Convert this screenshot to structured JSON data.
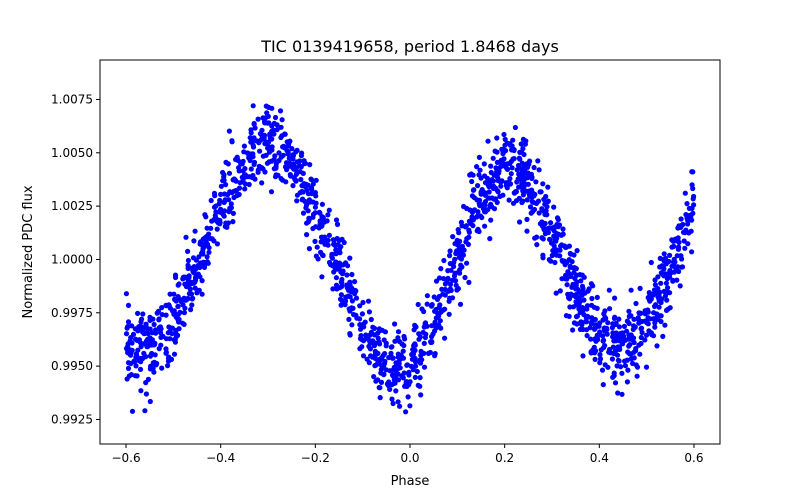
{
  "chart_data": {
    "type": "scatter",
    "title": "TIC 0139419658, period 1.8468 days",
    "xlabel": "Phase",
    "ylabel": "Normalized PDC flux",
    "xlim": [
      -0.655,
      0.655
    ],
    "ylim": [
      0.99135,
      1.00935
    ],
    "x_ticks": [
      -0.6,
      -0.4,
      -0.2,
      0.0,
      0.2,
      0.4,
      0.6
    ],
    "x_tick_labels": [
      "−0.6",
      "−0.4",
      "−0.2",
      "0.0",
      "0.2",
      "0.4",
      "0.6"
    ],
    "y_ticks": [
      0.9925,
      0.995,
      0.9975,
      1.0,
      1.0025,
      1.005,
      1.0075
    ],
    "y_tick_labels": [
      "0.9925",
      "0.9950",
      "0.9975",
      "1.0000",
      "1.0025",
      "1.0050",
      "1.0075"
    ],
    "grid": false,
    "marker_color": "#0000ff",
    "series": [
      {
        "name": "flux",
        "description_of_values": "binned mean flux vs phase; points scatter around it",
        "x": [
          -0.6,
          -0.55,
          -0.5,
          -0.45,
          -0.4,
          -0.35,
          -0.3,
          -0.25,
          -0.2,
          -0.15,
          -0.1,
          -0.05,
          0.0,
          0.05,
          0.1,
          0.15,
          0.2,
          0.25,
          0.3,
          0.35,
          0.4,
          0.45,
          0.5,
          0.55,
          0.6
        ],
        "y": [
          0.996,
          0.9958,
          0.997,
          0.9995,
          1.0025,
          1.0045,
          1.0055,
          1.0045,
          1.002,
          0.9995,
          0.9965,
          0.995,
          0.995,
          0.997,
          1.0,
          1.003,
          1.0045,
          1.0038,
          1.001,
          0.9985,
          0.9962,
          0.996,
          0.9968,
          0.9995,
          1.0025
        ],
        "scatter_sigma": 0.0011,
        "n_points": 1800
      }
    ]
  }
}
